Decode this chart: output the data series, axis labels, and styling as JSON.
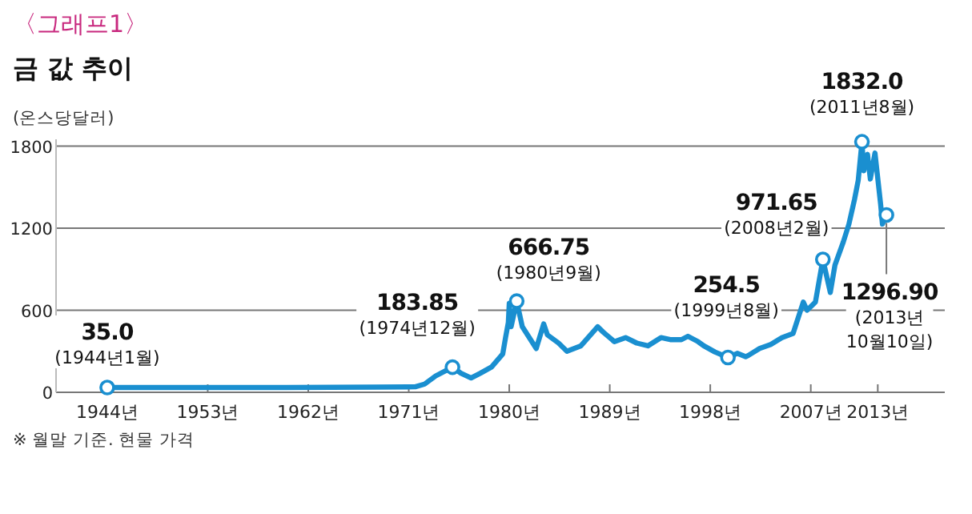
{
  "chart_data": {
    "type": "line",
    "subtitle": "〈그래프1〉",
    "title": "금 값 추이",
    "ylabel": "(온스당달러)",
    "x": [
      "1944-01",
      "1950-01",
      "1960-01",
      "1968-01",
      "1971-08",
      "1972-06",
      "1973-06",
      "1974-12",
      "1975-09",
      "1976-08",
      "1977-06",
      "1978-06",
      "1979-06",
      "1979-09",
      "1979-12",
      "1980-01",
      "1980-03",
      "1980-09",
      "1981-03",
      "1982-06",
      "1983-02",
      "1983-06",
      "1984-06",
      "1985-03",
      "1986-06",
      "1987-12",
      "1988-06",
      "1989-06",
      "1990-06",
      "1991-06",
      "1992-06",
      "1993-08",
      "1994-06",
      "1995-06",
      "1996-01",
      "1996-12",
      "1997-06",
      "1998-06",
      "1999-08",
      "2000-06",
      "2001-03",
      "2001-06",
      "2002-06",
      "2003-06",
      "2004-06",
      "2005-06",
      "2006-05",
      "2006-09",
      "2007-06",
      "2008-02",
      "2008-10",
      "2009-03",
      "2009-12",
      "2010-06",
      "2010-12",
      "2011-04",
      "2011-08",
      "2011-10",
      "2012-02",
      "2012-05",
      "2012-10",
      "2013-04",
      "2013-06",
      "2013-10-10"
    ],
    "series": [
      {
        "color": "#1a8fd0",
        "values": [
          35,
          35,
          35,
          38,
          40,
          60,
          120,
          183.85,
          140,
          105,
          140,
          185,
          280,
          400,
          510,
          650,
          480,
          666.75,
          480,
          320,
          500,
          420,
          360,
          300,
          340,
          480,
          440,
          370,
          400,
          360,
          340,
          400,
          385,
          385,
          410,
          370,
          340,
          295,
          254.5,
          285,
          260,
          270,
          320,
          350,
          400,
          430,
          660,
          600,
          660,
          971.65,
          730,
          930,
          1100,
          1230,
          1410,
          1550,
          1832,
          1620,
          1740,
          1560,
          1750,
          1380,
          1230,
          1296.9
        ]
      }
    ],
    "xlim": [
      "1939-06",
      "2019-01"
    ],
    "xticks": [
      {
        "value": "1944",
        "label": "1944년"
      },
      {
        "value": "1953",
        "label": "1953년"
      },
      {
        "value": "1962",
        "label": "1962년"
      },
      {
        "value": "1971",
        "label": "1971년"
      },
      {
        "value": "1980",
        "label": "1980년"
      },
      {
        "value": "1989",
        "label": "1989년"
      },
      {
        "value": "1998",
        "label": "1998년"
      },
      {
        "value": "2007",
        "label": "2007년"
      },
      {
        "value": "2013",
        "label": "2013년"
      }
    ],
    "ylim": [
      0,
      1850
    ],
    "yticks": [
      0,
      600,
      1200,
      1800
    ],
    "grid": "y",
    "marker": "none",
    "line_style": "solid",
    "annotations": [
      {
        "text": "35.0\n(1944년1월)",
        "x": "1944-01",
        "y": 35
      },
      {
        "text": "183.85\n(1974년12월)",
        "x": "1974-12",
        "y": 183.85
      },
      {
        "text": "666.75\n(1980년9월)",
        "x": "1980-09",
        "y": 666.75
      },
      {
        "text": "254.5\n(1999년8월)",
        "x": "1999-08",
        "y": 254.5
      },
      {
        "text": "971.65\n(2008년2월)",
        "x": "2008-02",
        "y": 971.65
      },
      {
        "text": "1832.0\n(2011년8월)",
        "x": "2011-08",
        "y": 1832
      },
      {
        "text": "1296.90\n(2013년\n10월10일)",
        "x": "2013-10-10",
        "y": 1296.9
      },
      "※ 월말 기준. 현물 가격"
    ]
  }
}
